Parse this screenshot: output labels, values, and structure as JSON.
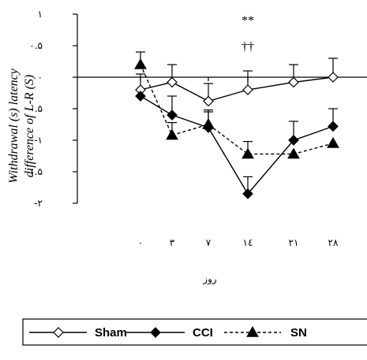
{
  "chart_data": {
    "type": "line",
    "ylabel_line1": "Withdrawal (s) latency",
    "ylabel_line2": "difference of L-R (S)",
    "xlabel": "روز",
    "ylim": [
      -2,
      1
    ],
    "yticks": [
      {
        "value": 1,
        "label": "۱"
      },
      {
        "value": 0.5,
        "label": "۰.۵"
      },
      {
        "value": 0,
        "label": "۰"
      },
      {
        "value": -0.5,
        "label": "-۰.۵"
      },
      {
        "value": -1,
        "label": "-۱"
      },
      {
        "value": -1.5,
        "label": "-۱.۵"
      },
      {
        "value": -2,
        "label": "-۲"
      }
    ],
    "categories": [
      "۰",
      "۳",
      "۷",
      "۱٤",
      "۲۱",
      "۲۸"
    ],
    "series": [
      {
        "name": "Sham",
        "marker": "diamond-open",
        "dash": "solid",
        "values": [
          -0.2,
          -0.08,
          -0.38,
          -0.2,
          -0.08,
          0.0
        ],
        "errors": [
          0.25,
          0.28,
          0.28,
          0.3,
          0.28,
          0.3
        ]
      },
      {
        "name": "CCI",
        "marker": "diamond-filled",
        "dash": "solid",
        "values": [
          -0.3,
          -0.6,
          -0.8,
          -1.85,
          -1.0,
          -0.78
        ],
        "errors": [
          0.0,
          0.3,
          0.28,
          0.27,
          0.3,
          0.28
        ]
      },
      {
        "name": "SN",
        "marker": "triangle-filled",
        "dash": "dashed",
        "values": [
          0.2,
          -0.92,
          -0.75,
          -1.22,
          -1.22,
          -1.05
        ],
        "errors": [
          0.2,
          0.2,
          0.2,
          0.2,
          0.0,
          0.0
        ]
      }
    ],
    "annotations": [
      {
        "text": "**",
        "category_index": 3
      },
      {
        "text": "††",
        "category_index": 3
      }
    ],
    "legend_labels": [
      "Sham",
      "CCI",
      "SN"
    ],
    "legend_position": "bottom"
  }
}
